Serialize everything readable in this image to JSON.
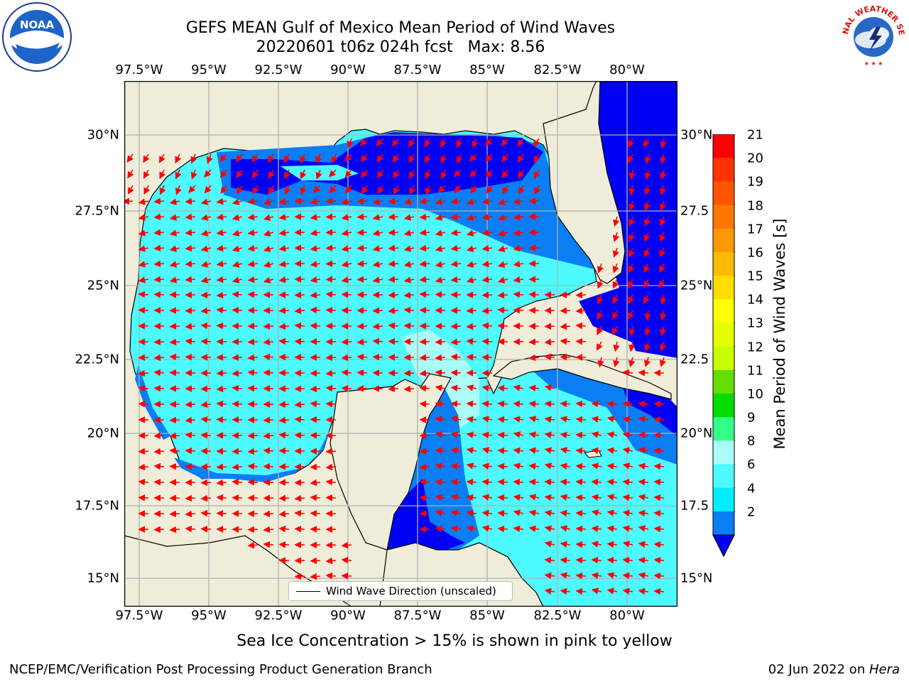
{
  "title": {
    "line1": "GEFS MEAN Gulf of Mexico Mean Period of Wind Waves",
    "line2": "20220601 t06z 024h fcst   Max: 8.56"
  },
  "map": {
    "lon_ticks": [
      "97.5°W",
      "95°W",
      "92.5°W",
      "90°W",
      "87.5°W",
      "85°W",
      "82.5°W",
      "80°W"
    ],
    "lat_ticks_left": [
      "30°N",
      "27.5°N",
      "25°N",
      "22.5°N",
      "20°N",
      "17.5°N",
      "15°N"
    ],
    "lat_ticks_right": [
      "30°N",
      "27.5",
      "25°N",
      "22.5",
      "20°N",
      "17.5",
      "15°N"
    ],
    "legend_label": "Wind Wave Direction (unscaled)",
    "colors": {
      "land": "#efedd9",
      "ocean_light": "#4dfaff",
      "ocean_mid": "#0a7ef5",
      "ocean_dark": "#0000f5",
      "ocean_pale": "#aafcf7",
      "arrow": "#ff0000"
    }
  },
  "colorbar": {
    "title": "Mean Period of Wind Waves [s]",
    "labels": [
      "21",
      "20",
      "19",
      "18",
      "17",
      "16",
      "15",
      "14",
      "13",
      "12",
      "11",
      "10",
      "9",
      "8",
      "6",
      "4",
      "2"
    ],
    "colors": [
      "#ff0000",
      "#ff3300",
      "#ff5500",
      "#ff7700",
      "#ff9900",
      "#ffbb00",
      "#ffdd00",
      "#ffff00",
      "#e6ff00",
      "#c8ff00",
      "#66dd00",
      "#00dd00",
      "#33ff88",
      "#aafcf7",
      "#4dfaff",
      "#00eeff",
      "#0a7ef5"
    ],
    "extend_color": "#0000f5"
  },
  "logos": {
    "left": "NOAA",
    "right": "NATIONAL WEATHER SERVICE"
  },
  "footer": {
    "note": "Sea Ice Concentration > 15% is shown in pink to yellow",
    "left": "NCEP/EMC/Verification Post Processing Product Generation Branch",
    "right_date": "02 Jun 2022 on ",
    "right_host": "Hera"
  }
}
